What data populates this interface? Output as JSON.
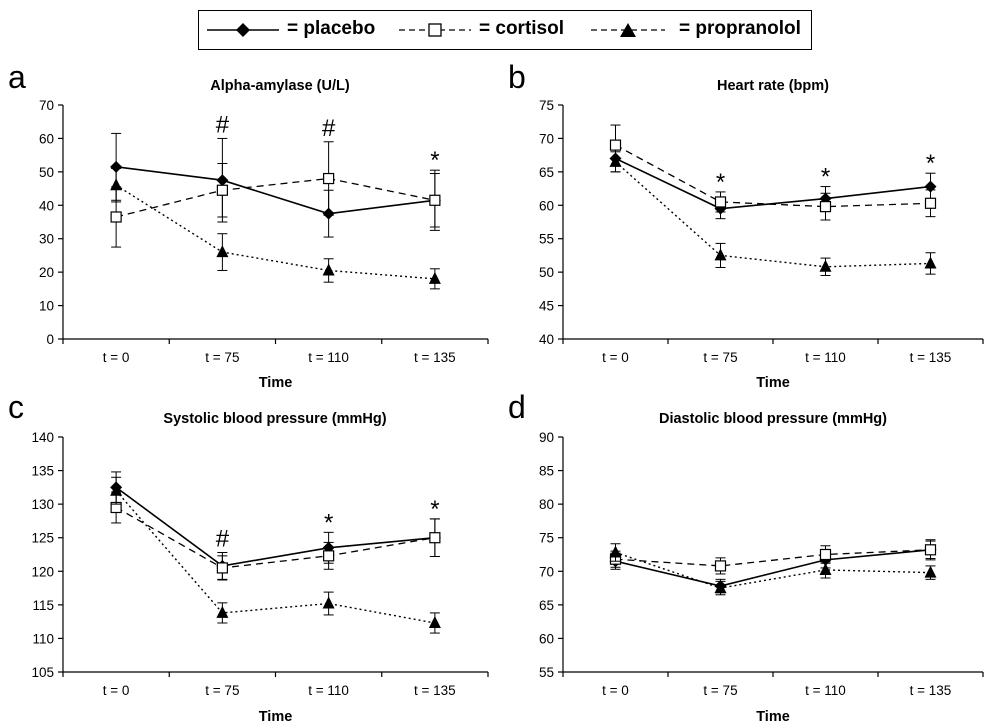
{
  "legend": {
    "placebo": "= placebo",
    "cortisol": "= cortisol",
    "propranolol": "= propranolol"
  },
  "chart_data": [
    {
      "panel": "a",
      "type": "line",
      "title": "Alpha-amylase (U/L)",
      "xlabel": "Time",
      "categories": [
        "t = 0",
        "t = 75",
        "t = 110",
        "t = 135"
      ],
      "ylim": [
        0,
        70
      ],
      "yticks": [
        0,
        10,
        20,
        30,
        40,
        50,
        60,
        70
      ],
      "annotations": [
        "",
        "#",
        "#",
        "*"
      ],
      "series": [
        {
          "name": "placebo",
          "values": [
            51.5,
            47.5,
            37.5,
            41.5
          ],
          "errors": [
            10,
            12.5,
            7,
            9
          ]
        },
        {
          "name": "cortisol",
          "values": [
            36.5,
            44.5,
            48,
            41.5
          ],
          "errors": [
            9,
            8,
            11,
            8
          ]
        },
        {
          "name": "propranolol",
          "values": [
            46,
            26,
            20.5,
            18
          ],
          "errors": [
            5,
            5.5,
            3.5,
            3
          ]
        }
      ]
    },
    {
      "panel": "b",
      "type": "line",
      "title": "Heart rate (bpm)",
      "xlabel": "Time",
      "categories": [
        "t = 0",
        "t = 75",
        "t = 110",
        "t = 135"
      ],
      "ylim": [
        40,
        75
      ],
      "yticks": [
        40,
        45,
        50,
        55,
        60,
        65,
        70,
        75
      ],
      "annotations": [
        "",
        "*",
        "*",
        "*"
      ],
      "series": [
        {
          "name": "placebo",
          "values": [
            67,
            59.5,
            61,
            62.8
          ],
          "errors": [
            2,
            1.5,
            1.8,
            2
          ]
        },
        {
          "name": "cortisol",
          "values": [
            69,
            60.5,
            59.8,
            60.3
          ],
          "errors": [
            3,
            1.5,
            2,
            2
          ]
        },
        {
          "name": "propranolol",
          "values": [
            66.5,
            52.5,
            50.8,
            51.3
          ],
          "errors": [
            1.5,
            1.8,
            1.3,
            1.6
          ]
        }
      ]
    },
    {
      "panel": "c",
      "type": "line",
      "title": "Systolic blood pressure (mmHg)",
      "xlabel": "Time",
      "categories": [
        "t = 0",
        "t = 75",
        "t = 110",
        "t = 135"
      ],
      "ylim": [
        105,
        140
      ],
      "yticks": [
        105,
        110,
        115,
        120,
        125,
        130,
        135,
        140
      ],
      "annotations": [
        "",
        "#",
        "*",
        "*"
      ],
      "series": [
        {
          "name": "placebo",
          "values": [
            132.5,
            120.8,
            123.5,
            125
          ],
          "errors": [
            2.3,
            2,
            2.3,
            2.8
          ]
        },
        {
          "name": "cortisol",
          "values": [
            129.5,
            120.5,
            122.3,
            125
          ],
          "errors": [
            2.3,
            1.8,
            2,
            2.8
          ]
        },
        {
          "name": "propranolol",
          "values": [
            132,
            113.8,
            115.2,
            112.3
          ],
          "errors": [
            2,
            1.5,
            1.7,
            1.5
          ]
        }
      ]
    },
    {
      "panel": "d",
      "type": "line",
      "title": "Diastolic blood pressure (mmHg)",
      "xlabel": "Time",
      "categories": [
        "t = 0",
        "t = 75",
        "t = 110",
        "t = 135"
      ],
      "ylim": [
        55,
        90
      ],
      "yticks": [
        55,
        60,
        65,
        70,
        75,
        80,
        85,
        90
      ],
      "annotations": [
        "",
        "",
        "",
        ""
      ],
      "series": [
        {
          "name": "placebo",
          "values": [
            71.5,
            67.8,
            71.7,
            73.2
          ],
          "errors": [
            1.2,
            1,
            1.2,
            1.3
          ]
        },
        {
          "name": "cortisol",
          "values": [
            71.8,
            70.8,
            72.5,
            73.2
          ],
          "errors": [
            1.2,
            1.2,
            1.3,
            1.5
          ]
        },
        {
          "name": "propranolol",
          "values": [
            72.8,
            67.5,
            70.2,
            69.8
          ],
          "errors": [
            1.3,
            1,
            1.2,
            1
          ]
        }
      ]
    }
  ]
}
